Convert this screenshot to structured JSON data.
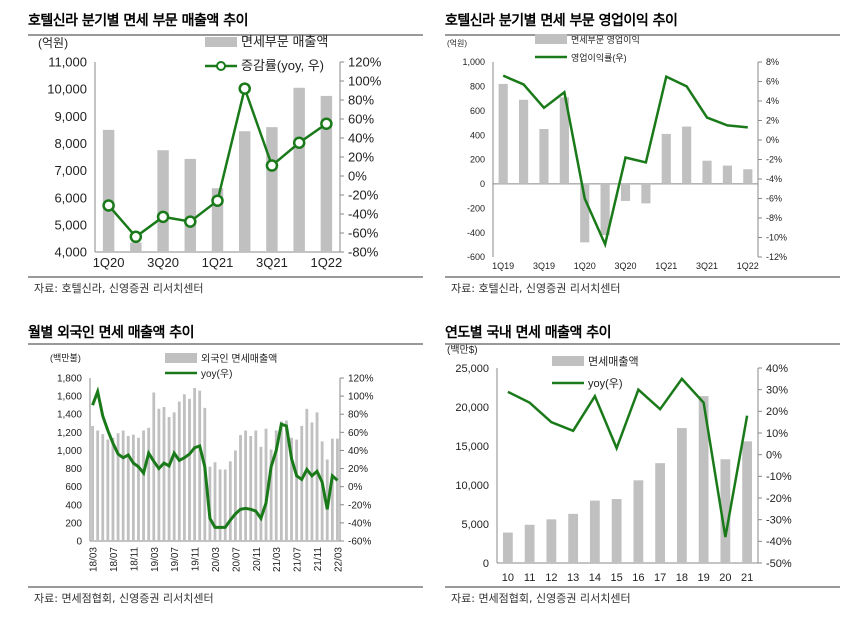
{
  "colors": {
    "bar": "#c0c0c0",
    "line": "#1a7a1a",
    "axis": "#888"
  },
  "chart_data": [
    {
      "type": "bar+line",
      "title": "호텔신라 분기별 면세 부문 매출액 추이",
      "unit_left": "(억원)",
      "source": "자료: 호텔신라, 신영증권 리서치센터",
      "categories": [
        "1Q20",
        "2Q20",
        "3Q20",
        "4Q20",
        "1Q21",
        "2Q21",
        "3Q21",
        "4Q21",
        "1Q22"
      ],
      "x_tick_labels": [
        "1Q20",
        "",
        "3Q20",
        "",
        "1Q21",
        "",
        "3Q21",
        "",
        "1Q22"
      ],
      "series": [
        {
          "name": "면세부문 매출액",
          "kind": "bar",
          "axis": "left",
          "values": [
            8500,
            4350,
            7750,
            7430,
            6350,
            8450,
            8600,
            10050,
            9750
          ]
        },
        {
          "name": "증감률(yoy, 우)",
          "kind": "line",
          "marker": "circle",
          "axis": "right",
          "values": [
            -31,
            -64,
            -43,
            -48,
            -26,
            92,
            11,
            35,
            55
          ]
        }
      ],
      "ylim_left": [
        4000,
        11000
      ],
      "yticks_left": [
        "4,000",
        "5,000",
        "6,000",
        "7,000",
        "8,000",
        "9,000",
        "10,000",
        "11,000"
      ],
      "ylim_right": [
        -80,
        120
      ],
      "yticks_right": [
        "-80%",
        "-60%",
        "-40%",
        "-20%",
        "0%",
        "20%",
        "40%",
        "60%",
        "80%",
        "100%",
        "120%"
      ]
    },
    {
      "type": "bar+line",
      "title": "호텔신라 분기별 면세 부문 영업이익 추이",
      "unit_left": "(억원)",
      "source": "자료: 호텔신라, 신영증권 리서치센터",
      "categories": [
        "1Q19",
        "2Q19",
        "3Q19",
        "4Q19",
        "1Q20",
        "2Q20",
        "3Q20",
        "4Q20",
        "1Q21",
        "2Q21",
        "3Q21",
        "4Q21",
        "1Q22"
      ],
      "x_tick_labels": [
        "1Q19",
        "",
        "3Q19",
        "",
        "1Q20",
        "",
        "3Q20",
        "",
        "1Q21",
        "",
        "3Q21",
        "",
        "1Q22"
      ],
      "series": [
        {
          "name": "면세부문 영업이익",
          "kind": "bar",
          "axis": "left",
          "values": [
            820,
            690,
            450,
            710,
            -480,
            -420,
            -140,
            -160,
            410,
            470,
            190,
            150,
            120
          ]
        },
        {
          "name": "영업이익률(우)",
          "kind": "line",
          "axis": "right",
          "values": [
            6.6,
            5.7,
            3.3,
            4.9,
            -6.0,
            -10.7,
            -1.8,
            -2.3,
            6.5,
            5.5,
            2.3,
            1.5,
            1.3
          ]
        }
      ],
      "ylim_left": [
        -600,
        1000
      ],
      "yticks_left": [
        "-600",
        "-400",
        "-200",
        "0",
        "200",
        "400",
        "600",
        "800",
        "1,000"
      ],
      "ylim_right": [
        -12,
        8
      ],
      "yticks_right": [
        "-12%",
        "-10%",
        "-8%",
        "-6%",
        "-4%",
        "-2%",
        "0%",
        "2%",
        "4%",
        "6%",
        "8%"
      ]
    },
    {
      "type": "bar+line",
      "title": "월별 외국인 면세 매출액 추이",
      "unit_left": "(백만불)",
      "source": "자료: 면세점협회, 신영증권 리서치센터",
      "categories": [
        "18/03",
        "18/04",
        "18/05",
        "18/06",
        "18/07",
        "18/08",
        "18/09",
        "18/10",
        "18/11",
        "18/12",
        "19/01",
        "19/02",
        "19/03",
        "19/04",
        "19/05",
        "19/06",
        "19/07",
        "19/08",
        "19/09",
        "19/10",
        "19/11",
        "19/12",
        "20/01",
        "20/02",
        "20/03",
        "20/04",
        "20/05",
        "20/06",
        "20/07",
        "20/08",
        "20/09",
        "20/10",
        "20/11",
        "20/12",
        "21/01",
        "21/02",
        "21/03",
        "21/04",
        "21/05",
        "21/06",
        "21/07",
        "21/08",
        "21/09",
        "21/10",
        "21/11",
        "21/12",
        "22/01",
        "22/02",
        "22/03"
      ],
      "x_tick_labels": [
        "18/03",
        "",
        "",
        "",
        "18/07",
        "",
        "",
        "",
        "18/11",
        "",
        "",
        "",
        "19/03",
        "",
        "",
        "",
        "19/07",
        "",
        "",
        "",
        "19/11",
        "",
        "",
        "",
        "20/03",
        "",
        "",
        "",
        "20/07",
        "",
        "",
        "",
        "20/11",
        "",
        "",
        "",
        "21/03",
        "",
        "",
        "",
        "21/07",
        "",
        "",
        "",
        "21/11",
        "",
        "",
        "",
        "22/03"
      ],
      "series": [
        {
          "name": "외국인 면세매출액",
          "kind": "bar",
          "axis": "left",
          "values": [
            1270,
            1220,
            1180,
            1120,
            1140,
            1190,
            1220,
            1160,
            1175,
            1140,
            1220,
            1250,
            1640,
            1460,
            1480,
            1370,
            1420,
            1540,
            1620,
            1570,
            1690,
            1660,
            1470,
            820,
            870,
            790,
            790,
            880,
            1000,
            1170,
            1220,
            1160,
            1220,
            1040,
            1240,
            1010,
            1220,
            1320,
            1330,
            1140,
            1120,
            1270,
            1460,
            1310,
            1420,
            1100,
            900,
            1130,
            1130
          ]
        },
        {
          "name": "yoy(우)",
          "kind": "line",
          "axis": "right",
          "values": [
            90,
            105,
            78,
            62,
            48,
            36,
            32,
            35,
            26,
            22,
            15,
            37,
            28,
            20,
            26,
            23,
            37,
            29,
            32,
            36,
            43,
            45,
            22,
            -35,
            -45,
            -45,
            -45,
            -37,
            -30,
            -25,
            -24,
            -25,
            -27,
            -35,
            -18,
            22,
            40,
            69,
            67,
            31,
            12,
            8,
            19,
            12,
            17,
            5,
            -25,
            12,
            7
          ]
        }
      ],
      "ylim_left": [
        0,
        1800
      ],
      "yticks_left": [
        "0",
        "200",
        "400",
        "600",
        "800",
        "1,000",
        "1,200",
        "1,400",
        "1,600",
        "1,800"
      ],
      "ylim_right": [
        -60,
        120
      ],
      "yticks_right": [
        "-60%",
        "-40%",
        "-20%",
        "0%",
        "20%",
        "40%",
        "60%",
        "80%",
        "100%",
        "120%"
      ]
    },
    {
      "type": "bar+line",
      "title": "연도별 국내 면세 매출액 추이",
      "unit_left": "(백만$)",
      "source": "자료: 면세점협회, 신영증권 리서치센터",
      "categories": [
        "10",
        "11",
        "12",
        "13",
        "14",
        "15",
        "16",
        "17",
        "18",
        "19",
        "20",
        "21"
      ],
      "x_tick_labels": [
        "10",
        "11",
        "12",
        "13",
        "14",
        "15",
        "16",
        "17",
        "18",
        "19",
        "20",
        "21"
      ],
      "series": [
        {
          "name": "면세매출액",
          "kind": "bar",
          "axis": "left",
          "values": [
            3900,
            4900,
            5600,
            6300,
            8000,
            8200,
            10600,
            12800,
            17300,
            21400,
            13300,
            15600
          ]
        },
        {
          "name": "yoy(우)",
          "kind": "line",
          "axis": "right",
          "values": [
            29,
            24,
            15,
            11,
            27,
            3,
            30,
            21,
            35,
            24,
            -38,
            18
          ]
        }
      ],
      "ylim_left": [
        0,
        25000
      ],
      "yticks_left": [
        "0",
        "5,000",
        "10,000",
        "15,000",
        "20,000",
        "25,000"
      ],
      "ylim_right": [
        -50,
        40
      ],
      "yticks_right": [
        "-50%",
        "-40%",
        "-30%",
        "-20%",
        "-10%",
        "0%",
        "10%",
        "20%",
        "30%",
        "40%"
      ]
    }
  ]
}
